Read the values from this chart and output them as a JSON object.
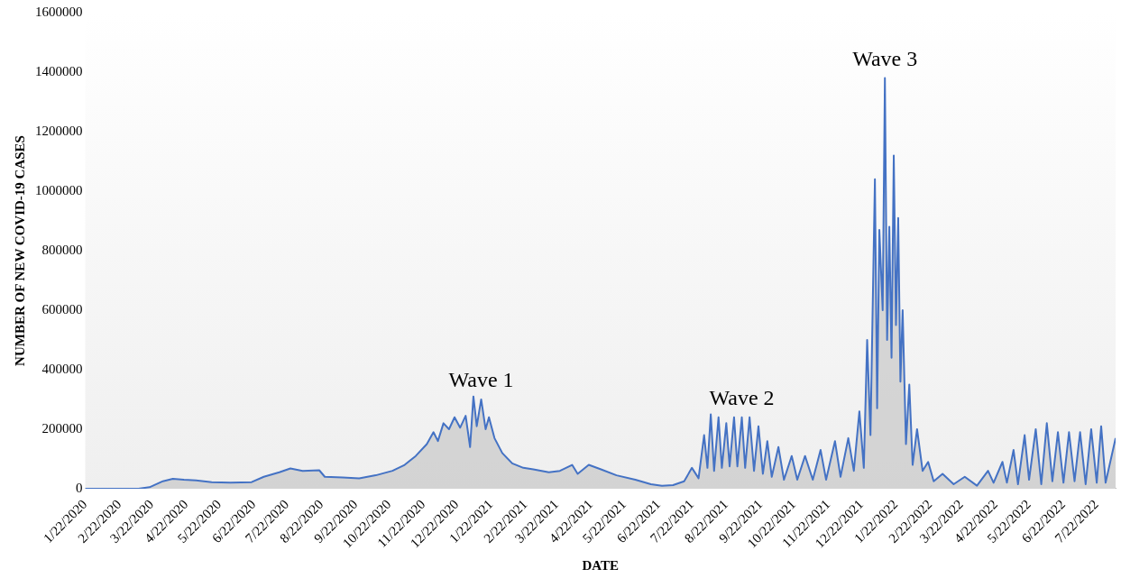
{
  "chart_data": {
    "type": "area",
    "xlabel": "DATE",
    "ylabel": "NUMBER OF NEW COVID-19 CASES",
    "x": [
      "2020-01-22",
      "2020-03-10",
      "2020-03-20",
      "2020-04-01",
      "2020-04-10",
      "2020-04-20",
      "2020-05-01",
      "2020-05-15",
      "2020-06-01",
      "2020-06-20",
      "2020-07-01",
      "2020-07-15",
      "2020-07-25",
      "2020-08-05",
      "2020-08-20",
      "2020-08-25",
      "2020-09-10",
      "2020-09-25",
      "2020-10-10",
      "2020-10-25",
      "2020-11-05",
      "2020-11-15",
      "2020-11-25",
      "2020-12-01",
      "2020-12-05",
      "2020-12-10",
      "2020-12-15",
      "2020-12-20",
      "2020-12-25",
      "2020-12-30",
      "2021-01-03",
      "2021-01-06",
      "2021-01-09",
      "2021-01-13",
      "2021-01-17",
      "2021-01-20",
      "2021-01-25",
      "2021-02-01",
      "2021-02-10",
      "2021-02-20",
      "2021-03-01",
      "2021-03-15",
      "2021-03-25",
      "2021-04-05",
      "2021-04-10",
      "2021-04-20",
      "2021-05-01",
      "2021-05-15",
      "2021-06-01",
      "2021-06-15",
      "2021-06-25",
      "2021-07-05",
      "2021-07-15",
      "2021-07-22",
      "2021-07-28",
      "2021-08-02",
      "2021-08-05",
      "2021-08-08",
      "2021-08-11",
      "2021-08-15",
      "2021-08-18",
      "2021-08-22",
      "2021-08-25",
      "2021-08-29",
      "2021-09-01",
      "2021-09-05",
      "2021-09-08",
      "2021-09-12",
      "2021-09-16",
      "2021-09-20",
      "2021-09-24",
      "2021-09-28",
      "2021-10-02",
      "2021-10-08",
      "2021-10-13",
      "2021-10-20",
      "2021-10-25",
      "2021-11-01",
      "2021-11-08",
      "2021-11-15",
      "2021-11-20",
      "2021-11-28",
      "2021-12-03",
      "2021-12-10",
      "2021-12-15",
      "2021-12-20",
      "2021-12-24",
      "2021-12-27",
      "2021-12-30",
      "2022-01-03",
      "2022-01-05",
      "2022-01-07",
      "2022-01-10",
      "2022-01-12",
      "2022-01-14",
      "2022-01-16",
      "2022-01-18",
      "2022-01-20",
      "2022-01-22",
      "2022-01-24",
      "2022-01-26",
      "2022-01-28",
      "2022-01-31",
      "2022-02-03",
      "2022-02-06",
      "2022-02-10",
      "2022-02-15",
      "2022-02-20",
      "2022-02-25",
      "2022-03-05",
      "2022-03-15",
      "2022-03-25",
      "2022-04-05",
      "2022-04-15",
      "2022-04-20",
      "2022-04-28",
      "2022-05-02",
      "2022-05-08",
      "2022-05-12",
      "2022-05-18",
      "2022-05-22",
      "2022-05-28",
      "2022-06-02",
      "2022-06-07",
      "2022-06-12",
      "2022-06-17",
      "2022-06-22",
      "2022-06-27",
      "2022-07-02",
      "2022-07-07",
      "2022-07-12",
      "2022-07-17",
      "2022-07-22",
      "2022-07-26",
      "2022-07-30",
      "2022-08-08"
    ],
    "series": [
      {
        "color": "#4472c4",
        "values": [
          0,
          0,
          5000,
          25000,
          33000,
          30000,
          28000,
          22000,
          20000,
          22000,
          40000,
          55000,
          68000,
          60000,
          62000,
          40000,
          38000,
          35000,
          45000,
          60000,
          80000,
          110000,
          150000,
          190000,
          160000,
          220000,
          200000,
          240000,
          205000,
          245000,
          140000,
          310000,
          210000,
          300000,
          200000,
          240000,
          170000,
          120000,
          85000,
          70000,
          65000,
          55000,
          60000,
          80000,
          50000,
          80000,
          65000,
          45000,
          30000,
          15000,
          10000,
          12000,
          25000,
          70000,
          35000,
          180000,
          70000,
          250000,
          60000,
          240000,
          70000,
          220000,
          75000,
          240000,
          75000,
          240000,
          70000,
          240000,
          60000,
          210000,
          50000,
          160000,
          40000,
          140000,
          30000,
          110000,
          30000,
          110000,
          30000,
          130000,
          30000,
          160000,
          40000,
          170000,
          60000,
          260000,
          70000,
          500000,
          180000,
          1040000,
          270000,
          870000,
          600000,
          1380000,
          500000,
          880000,
          440000,
          1120000,
          550000,
          910000,
          360000,
          600000,
          150000,
          350000,
          80000,
          200000,
          60000,
          90000,
          25000,
          50000,
          15000,
          40000,
          10000,
          60000,
          20000,
          90000,
          20000,
          130000,
          15000,
          180000,
          30000,
          200000,
          15000,
          220000,
          25000,
          190000,
          20000,
          190000,
          25000,
          190000,
          15000,
          200000,
          20000,
          210000,
          20000,
          170000
        ]
      }
    ],
    "xlim": [
      "2020-01-22",
      "2022-08-08"
    ],
    "xticks": [
      {
        "value": "2020-01-22",
        "label": "1/22/2020"
      },
      {
        "value": "2020-02-22",
        "label": "2/22/2020"
      },
      {
        "value": "2020-03-22",
        "label": "3/22/2020"
      },
      {
        "value": "2020-04-22",
        "label": "4/22/2020"
      },
      {
        "value": "2020-05-22",
        "label": "5/22/2020"
      },
      {
        "value": "2020-06-22",
        "label": "6/22/2020"
      },
      {
        "value": "2020-07-22",
        "label": "7/22/2020"
      },
      {
        "value": "2020-08-22",
        "label": "8/22/2020"
      },
      {
        "value": "2020-09-22",
        "label": "9/22/2020"
      },
      {
        "value": "2020-10-22",
        "label": "10/22/2020"
      },
      {
        "value": "2020-11-22",
        "label": "11/22/2020"
      },
      {
        "value": "2020-12-22",
        "label": "12/22/2020"
      },
      {
        "value": "2021-01-22",
        "label": "1/22/2021"
      },
      {
        "value": "2021-02-22",
        "label": "2/22/2021"
      },
      {
        "value": "2021-03-22",
        "label": "3/22/2021"
      },
      {
        "value": "2021-04-22",
        "label": "4/22/2021"
      },
      {
        "value": "2021-05-22",
        "label": "5/22/2021"
      },
      {
        "value": "2021-06-22",
        "label": "6/22/2021"
      },
      {
        "value": "2021-07-22",
        "label": "7/22/2021"
      },
      {
        "value": "2021-08-22",
        "label": "8/22/2021"
      },
      {
        "value": "2021-09-22",
        "label": "9/22/2021"
      },
      {
        "value": "2021-10-22",
        "label": "10/22/2021"
      },
      {
        "value": "2021-11-22",
        "label": "11/22/2021"
      },
      {
        "value": "2021-12-22",
        "label": "12/22/2021"
      },
      {
        "value": "2022-01-22",
        "label": "1/22/2022"
      },
      {
        "value": "2022-02-22",
        "label": "2/22/2022"
      },
      {
        "value": "2022-03-22",
        "label": "3/22/2022"
      },
      {
        "value": "2022-04-22",
        "label": "4/22/2022"
      },
      {
        "value": "2022-05-22",
        "label": "5/22/2022"
      },
      {
        "value": "2022-06-22",
        "label": "6/22/2022"
      },
      {
        "value": "2022-07-22",
        "label": "7/22/2022"
      }
    ],
    "ylim": [
      0,
      1600000
    ],
    "yticks": [
      0,
      200000,
      400000,
      600000,
      800000,
      1000000,
      1200000,
      1400000,
      1600000
    ],
    "annotations": [
      {
        "text": "Wave 1",
        "x": "2021-01-13",
        "y": 300000
      },
      {
        "text": "Wave 2",
        "x": "2021-09-05",
        "y": 240000
      },
      {
        "text": "Wave 3",
        "x": "2022-01-12",
        "y": 1380000
      }
    ]
  }
}
